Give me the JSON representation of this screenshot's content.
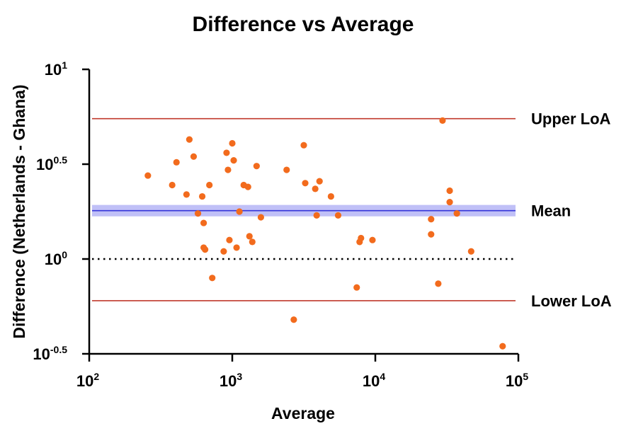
{
  "chart_data": {
    "type": "scatter",
    "title": "Difference vs Average",
    "xlabel": "Average",
    "ylabel": "Difference (Netherlands - Ghana)",
    "x_scale": "log",
    "y_scale": "log",
    "x_log10_range": [
      2,
      5
    ],
    "y_log10_range": [
      -0.5,
      1
    ],
    "x_ticks": [
      {
        "base": "10",
        "exp": "2",
        "log10": 2
      },
      {
        "base": "10",
        "exp": "3",
        "log10": 3
      },
      {
        "base": "10",
        "exp": "4",
        "log10": 4
      },
      {
        "base": "10",
        "exp": "5",
        "log10": 5
      }
    ],
    "y_ticks": [
      {
        "base": "10",
        "exp": "1",
        "log10": 1
      },
      {
        "base": "10",
        "exp": "0.5",
        "log10": 0.5
      },
      {
        "base": "10",
        "exp": "0",
        "log10": 0
      },
      {
        "base": "10",
        "exp": "-0.5",
        "log10": -0.5
      }
    ],
    "reference_lines": [
      {
        "label": "Upper LoA",
        "log10_value": 0.74,
        "color": "#c0392b",
        "style": "solid"
      },
      {
        "label": "Mean",
        "log10_value": 0.255,
        "color": "#3535d8",
        "style": "solid",
        "band_halfwidth_log10": 0.03,
        "band_color": "#8c8cf0"
      },
      {
        "label": "Lower LoA",
        "log10_value": -0.22,
        "color": "#c0392b",
        "style": "solid"
      },
      {
        "label": "",
        "log10_value": 0,
        "color": "#000000",
        "style": "dotted"
      }
    ],
    "point_color": "#f26b1d",
    "points_log10": [
      [
        2.41,
        0.44
      ],
      [
        2.58,
        0.39
      ],
      [
        2.61,
        0.51
      ],
      [
        2.68,
        0.34
      ],
      [
        2.7,
        0.63
      ],
      [
        2.73,
        0.54
      ],
      [
        2.76,
        0.24
      ],
      [
        2.79,
        0.33
      ],
      [
        2.8,
        0.19
      ],
      [
        2.8,
        0.06
      ],
      [
        2.81,
        0.05
      ],
      [
        2.84,
        0.39
      ],
      [
        2.86,
        -0.1
      ],
      [
        2.94,
        0.04
      ],
      [
        2.96,
        0.56
      ],
      [
        2.97,
        0.47
      ],
      [
        2.98,
        0.1
      ],
      [
        3.0,
        0.61
      ],
      [
        3.01,
        0.52
      ],
      [
        3.03,
        0.06
      ],
      [
        3.05,
        0.25
      ],
      [
        3.08,
        0.39
      ],
      [
        3.11,
        0.38
      ],
      [
        3.12,
        0.12
      ],
      [
        3.14,
        0.09
      ],
      [
        3.17,
        0.49
      ],
      [
        3.2,
        0.22
      ],
      [
        3.38,
        0.47
      ],
      [
        3.43,
        -0.32
      ],
      [
        3.5,
        0.6
      ],
      [
        3.51,
        0.4
      ],
      [
        3.58,
        0.37
      ],
      [
        3.59,
        0.23
      ],
      [
        3.61,
        0.41
      ],
      [
        3.69,
        0.33
      ],
      [
        3.74,
        0.23
      ],
      [
        3.87,
        -0.15
      ],
      [
        3.89,
        0.09
      ],
      [
        3.9,
        0.11
      ],
      [
        3.98,
        0.1
      ],
      [
        4.39,
        0.21
      ],
      [
        4.39,
        0.13
      ],
      [
        4.44,
        -0.13
      ],
      [
        4.47,
        0.73
      ],
      [
        4.52,
        0.36
      ],
      [
        4.52,
        0.3
      ],
      [
        4.57,
        0.24
      ],
      [
        4.67,
        0.04
      ],
      [
        4.89,
        -0.46
      ]
    ]
  }
}
